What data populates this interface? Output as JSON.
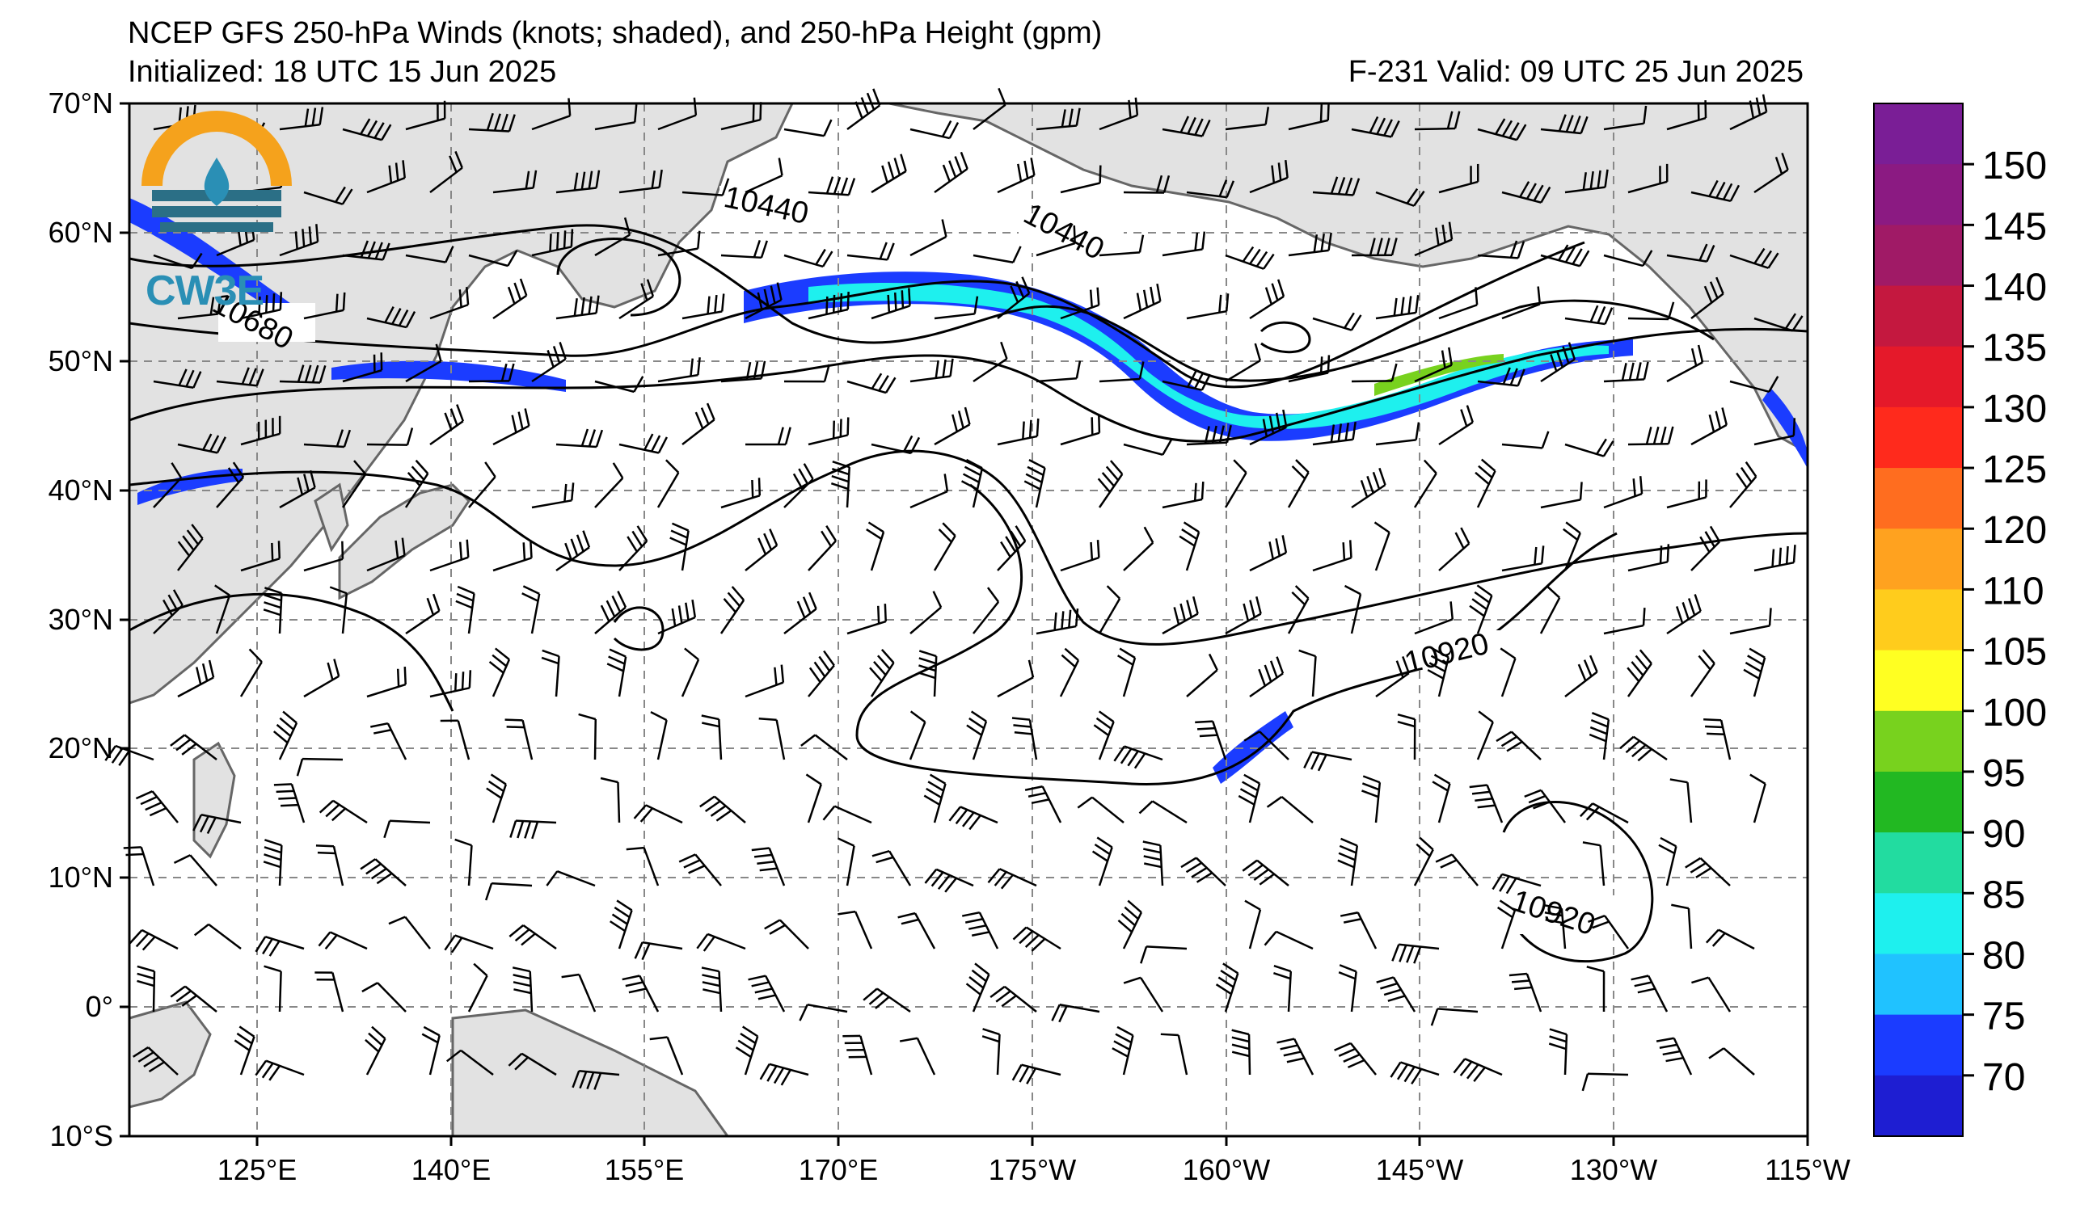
{
  "title_line1": "NCEP GFS 250-hPa Winds (knots; shaded), and 250-hPa Height (gpm)",
  "title_line2_left": "Initialized: 18 UTC 15 Jun 2025",
  "title_line2_right": "F-231  Valid: 09 UTC 25 Jun 2025",
  "logo_text": "CW3E",
  "lat_labels": [
    "70°N",
    "60°N",
    "50°N",
    "40°N",
    "30°N",
    "20°N",
    "10°N",
    "0°",
    "10°S"
  ],
  "lon_labels": [
    "125°E",
    "140°E",
    "155°E",
    "170°E",
    "175°W",
    "160°W",
    "145°W",
    "130°W",
    "115°W"
  ],
  "contour_labels": [
    {
      "text": "10440",
      "id": "c1"
    },
    {
      "text": "10440",
      "id": "c2"
    },
    {
      "text": "10680",
      "id": "c3"
    },
    {
      "text": "10920",
      "id": "c4"
    },
    {
      "text": "10920",
      "id": "c5"
    }
  ],
  "colorbar": {
    "labels": [
      "150",
      "145",
      "140",
      "135",
      "130",
      "125",
      "120",
      "110",
      "105",
      "100",
      "95",
      "90",
      "85",
      "80",
      "75",
      "70"
    ],
    "colors": [
      "#7a1e96",
      "#8b1a82",
      "#a01a66",
      "#c4183f",
      "#e5192a",
      "#ff2a1c",
      "#ff6d1f",
      "#ffa21f",
      "#ffcc1c",
      "#ffff22",
      "#78d21e",
      "#22b822",
      "#22dca0",
      "#1ef0ee",
      "#20c2ff",
      "#1b3cff",
      "#1e1ed2"
    ]
  }
}
